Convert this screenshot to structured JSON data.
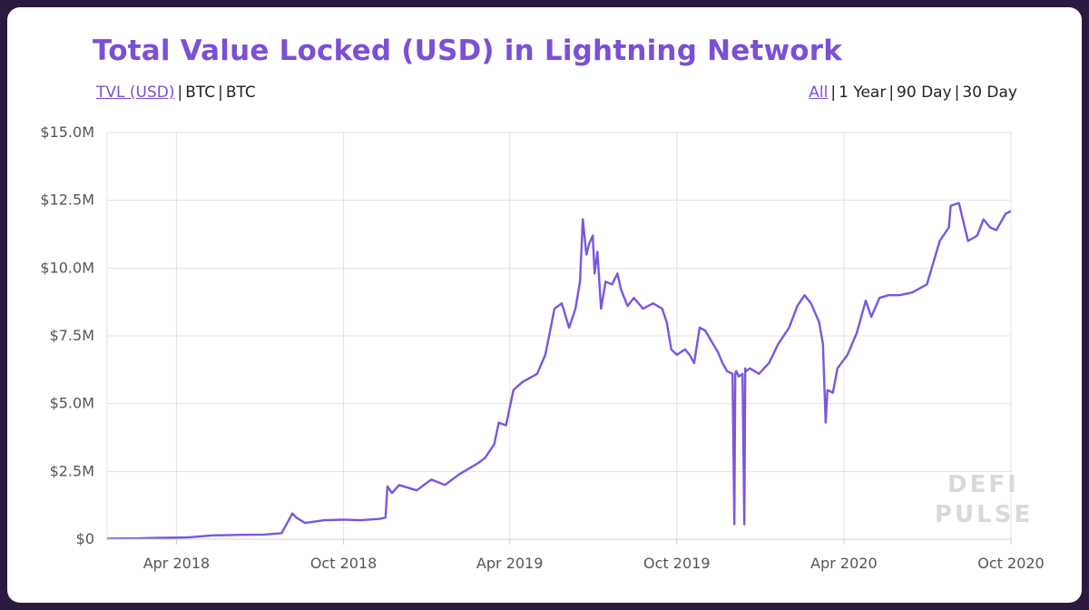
{
  "header": {
    "title": "Total Value Locked (USD) in Lightning Network"
  },
  "metric_toggle": {
    "options": [
      "TVL (USD)",
      "BTC",
      "BTC"
    ],
    "active": 0
  },
  "range_toggle": {
    "options": [
      "All",
      "1 Year",
      "90 Day",
      "30 Day"
    ],
    "active": 0
  },
  "watermark": {
    "line1": "DEFI",
    "line2": "PULSE"
  },
  "colors": {
    "accent": "#7b4fd6",
    "line": "#7b55e0",
    "grid": "#e3e3e3"
  },
  "chart_data": {
    "type": "line",
    "title": "Total Value Locked (USD) in Lightning Network",
    "xlabel": "",
    "ylabel": "",
    "xlim": [
      "2018-01-15",
      "2020-10-01"
    ],
    "ylim": [
      0,
      15000000
    ],
    "y_ticks": [
      {
        "value": 0,
        "label": "$0"
      },
      {
        "value": 2500000,
        "label": "$2.5M"
      },
      {
        "value": 5000000,
        "label": "$5.0M"
      },
      {
        "value": 7500000,
        "label": "$7.5M"
      },
      {
        "value": 10000000,
        "label": "$10.0M"
      },
      {
        "value": 12500000,
        "label": "$12.5M"
      },
      {
        "value": 15000000,
        "label": "$15.0M"
      }
    ],
    "x_ticks": [
      {
        "value": "2018-04-01",
        "label": "Apr 2018"
      },
      {
        "value": "2018-10-01",
        "label": "Oct 2018"
      },
      {
        "value": "2019-04-01",
        "label": "Apr 2019"
      },
      {
        "value": "2019-10-01",
        "label": "Oct 2019"
      },
      {
        "value": "2020-04-01",
        "label": "Apr 2020"
      },
      {
        "value": "2020-10-01",
        "label": "Oct 2020"
      }
    ],
    "grid": true,
    "legend": "none",
    "series": [
      {
        "x": [
          "2018-01-15",
          "2018-02-15",
          "2018-03-15",
          "2018-04-15",
          "2018-05-10",
          "2018-06-10",
          "2018-07-05",
          "2018-07-25",
          "2018-08-02",
          "2018-08-06",
          "2018-08-10",
          "2018-08-20",
          "2018-09-10",
          "2018-10-01",
          "2018-10-20",
          "2018-11-10",
          "2018-11-16",
          "2018-11-18",
          "2018-11-23",
          "2018-12-01",
          "2018-12-20",
          "2019-01-05",
          "2019-01-20",
          "2019-02-05",
          "2019-02-25",
          "2019-03-05",
          "2019-03-15",
          "2019-03-20",
          "2019-03-28",
          "2019-04-05",
          "2019-04-15",
          "2019-05-01",
          "2019-05-10",
          "2019-05-20",
          "2019-05-28",
          "2019-06-05",
          "2019-06-12",
          "2019-06-17",
          "2019-06-20",
          "2019-06-24",
          "2019-06-27",
          "2019-07-01",
          "2019-07-03",
          "2019-07-06",
          "2019-07-10",
          "2019-07-15",
          "2019-07-22",
          "2019-07-28",
          "2019-08-01",
          "2019-08-08",
          "2019-08-15",
          "2019-08-25",
          "2019-09-05",
          "2019-09-15",
          "2019-09-20",
          "2019-09-25",
          "2019-10-01",
          "2019-10-10",
          "2019-10-15",
          "2019-10-20",
          "2019-10-26",
          "2019-11-01",
          "2019-11-08",
          "2019-11-15",
          "2019-11-20",
          "2019-11-25",
          "2019-12-01",
          "2019-12-03",
          "2019-12-04",
          "2019-12-05",
          "2019-12-08",
          "2019-12-12",
          "2019-12-14",
          "2019-12-15",
          "2019-12-16",
          "2019-12-20",
          "2019-12-30",
          "2020-01-10",
          "2020-01-20",
          "2020-02-01",
          "2020-02-10",
          "2020-02-18",
          "2020-02-25",
          "2020-03-05",
          "2020-03-09",
          "2020-03-12",
          "2020-03-14",
          "2020-03-20",
          "2020-03-25",
          "2020-04-05",
          "2020-04-15",
          "2020-04-25",
          "2020-05-01",
          "2020-05-10",
          "2020-05-20",
          "2020-06-01",
          "2020-06-15",
          "2020-07-01",
          "2020-07-15",
          "2020-07-25",
          "2020-07-27",
          "2020-08-05",
          "2020-08-15",
          "2020-08-25",
          "2020-09-01",
          "2020-09-08",
          "2020-09-15",
          "2020-09-25",
          "2020-10-01"
        ],
        "y": [
          20000,
          30000,
          50000,
          70000,
          140000,
          160000,
          170000,
          220000,
          700000,
          950000,
          800000,
          600000,
          700000,
          720000,
          700000,
          750000,
          800000,
          1950000,
          1700000,
          2000000,
          1800000,
          2200000,
          2000000,
          2400000,
          2800000,
          3000000,
          3500000,
          4300000,
          4200000,
          5500000,
          5800000,
          6100000,
          6800000,
          8500000,
          8700000,
          7800000,
          8500000,
          9500000,
          11800000,
          10500000,
          10900000,
          11200000,
          9800000,
          10600000,
          8500000,
          9500000,
          9400000,
          9800000,
          9200000,
          8600000,
          8900000,
          8500000,
          8700000,
          8500000,
          8000000,
          7000000,
          6800000,
          7000000,
          6800000,
          6500000,
          7800000,
          7700000,
          7300000,
          6900000,
          6500000,
          6200000,
          6100000,
          550000,
          6100000,
          6200000,
          6000000,
          6100000,
          550000,
          6300000,
          6200000,
          6300000,
          6100000,
          6500000,
          7200000,
          7800000,
          8600000,
          9000000,
          8700000,
          8000000,
          7200000,
          4300000,
          5500000,
          5400000,
          6300000,
          6800000,
          7600000,
          8800000,
          8200000,
          8900000,
          9000000,
          9000000,
          9100000,
          9400000,
          11000000,
          11500000,
          12300000,
          12400000,
          11000000,
          11200000,
          11800000,
          11500000,
          11400000,
          12000000,
          12100000
        ]
      }
    ]
  }
}
